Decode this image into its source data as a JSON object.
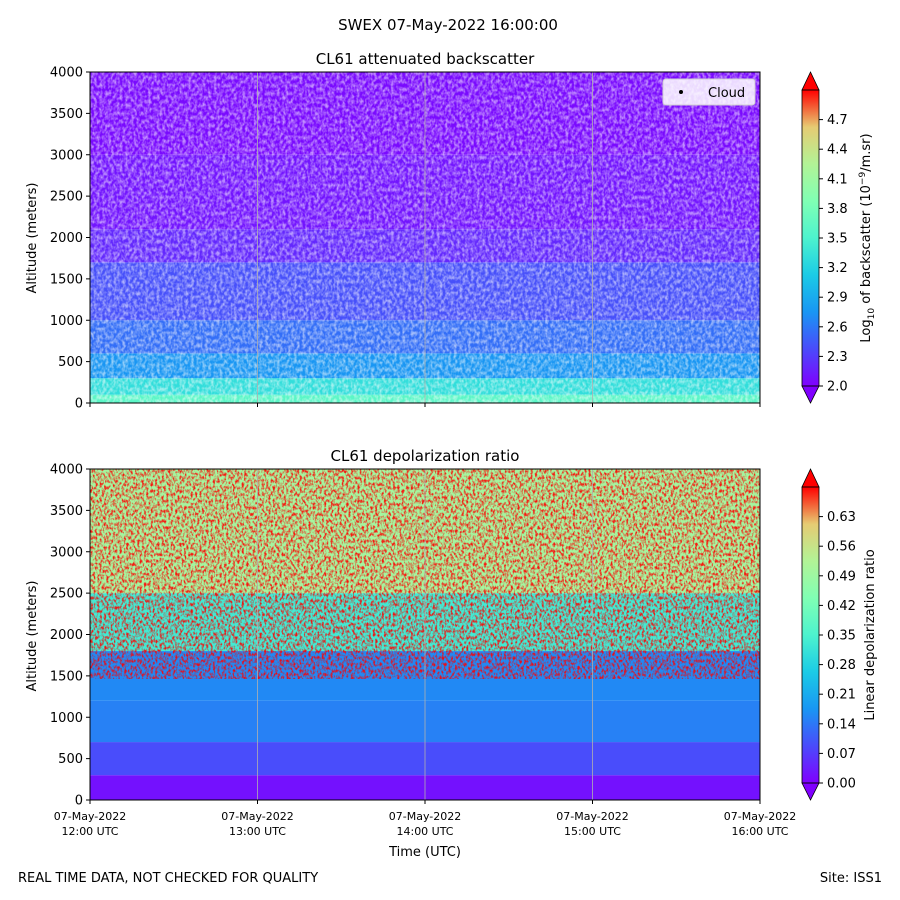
{
  "figure": {
    "suptitle": "SWEX 07-May-2022 16:00:00",
    "footer_left": "REAL TIME DATA, NOT CHECKED FOR QUALITY",
    "footer_right": "Site: ISS1"
  },
  "chart_data": [
    {
      "type": "heatmap",
      "title": "CL61 attenuated backscatter",
      "ylabel": "Altitude (meters)",
      "xlabel": "",
      "ylim": [
        0,
        4000
      ],
      "yticks": [
        0,
        500,
        1000,
        1500,
        2000,
        2500,
        3000,
        3500,
        4000
      ],
      "xticks": [
        [
          "07-May-2022",
          "12:00 UTC"
        ],
        [
          "07-May-2022",
          "13:00 UTC"
        ],
        [
          "07-May-2022",
          "14:00 UTC"
        ],
        [
          "07-May-2022",
          "15:00 UTC"
        ],
        [
          "07-May-2022",
          "16:00 UTC"
        ]
      ],
      "show_xtick_labels": false,
      "legend": [
        "Cloud"
      ],
      "legend_position": "top-right",
      "colorbar": {
        "label": "Log10 of backscatter (10^-9/m.sr)",
        "label_parts": {
          "pre": "Log",
          "sub": "10",
          "mid": " of backscatter (10",
          "sup": "−9",
          "post": "/m.sr)"
        },
        "range": [
          2.0,
          5.0
        ],
        "ticks": [
          "2.0",
          "2.3",
          "2.6",
          "2.9",
          "3.2",
          "3.5",
          "3.8",
          "4.1",
          "4.4",
          "4.7"
        ],
        "tick_values": [
          2.0,
          2.3,
          2.6,
          2.9,
          3.2,
          3.5,
          3.8,
          4.1,
          4.4,
          4.7
        ]
      },
      "layers": [
        {
          "alt_min": 0,
          "alt_max": 100,
          "value": 3.6
        },
        {
          "alt_min": 100,
          "alt_max": 300,
          "value": 3.3
        },
        {
          "alt_min": 300,
          "alt_max": 600,
          "value": 2.75
        },
        {
          "alt_min": 600,
          "alt_max": 1000,
          "value": 2.55
        },
        {
          "alt_min": 1000,
          "alt_max": 1700,
          "value": 2.4
        },
        {
          "alt_min": 1700,
          "alt_max": 2100,
          "value": 2.2
        },
        {
          "alt_min": 2100,
          "alt_max": 3000,
          "value": 2.1
        },
        {
          "alt_min": 3000,
          "alt_max": 4000,
          "value": 2.05
        }
      ]
    },
    {
      "type": "heatmap",
      "title": "CL61 depolarization ratio",
      "ylabel": "Altitude (meters)",
      "xlabel": "Time (UTC)",
      "ylim": [
        0,
        4000
      ],
      "yticks": [
        0,
        500,
        1000,
        1500,
        2000,
        2500,
        3000,
        3500,
        4000
      ],
      "xticks": [
        [
          "07-May-2022",
          "12:00 UTC"
        ],
        [
          "07-May-2022",
          "13:00 UTC"
        ],
        [
          "07-May-2022",
          "14:00 UTC"
        ],
        [
          "07-May-2022",
          "15:00 UTC"
        ],
        [
          "07-May-2022",
          "16:00 UTC"
        ]
      ],
      "show_xtick_labels": true,
      "colorbar": {
        "label": "Linear depolarization ratio",
        "range": [
          0.0,
          0.7
        ],
        "ticks": [
          "0.00",
          "0.07",
          "0.14",
          "0.21",
          "0.28",
          "0.35",
          "0.42",
          "0.49",
          "0.56",
          "0.63"
        ],
        "tick_values": [
          0.0,
          0.07,
          0.14,
          0.21,
          0.28,
          0.35,
          0.42,
          0.49,
          0.56,
          0.63
        ]
      },
      "layers": [
        {
          "alt_min": 0,
          "alt_max": 300,
          "value": 0.02
        },
        {
          "alt_min": 300,
          "alt_max": 700,
          "value": 0.09
        },
        {
          "alt_min": 700,
          "alt_max": 1200,
          "value": 0.15
        },
        {
          "alt_min": 1200,
          "alt_max": 1800,
          "value": 0.16
        },
        {
          "alt_min": 1800,
          "alt_max": 2500,
          "value": 0.33
        },
        {
          "alt_min": 2500,
          "alt_max": 4000,
          "value": 0.5
        }
      ]
    }
  ]
}
